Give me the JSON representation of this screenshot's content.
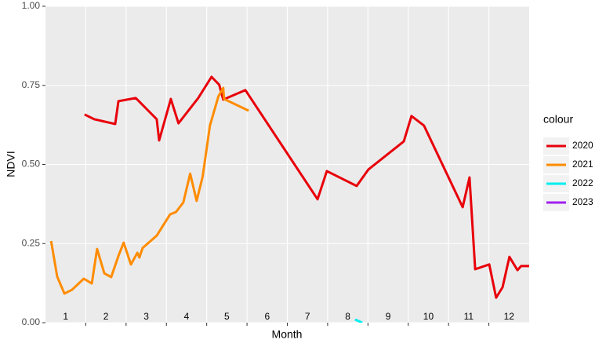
{
  "chart_data": {
    "type": "line",
    "x_label": "Month",
    "y_label": "NDVI",
    "legend_title": "colour",
    "xlim": [
      0.5,
      12.5
    ],
    "xticks": [
      1,
      2,
      3,
      4,
      5,
      6,
      7,
      8,
      9,
      10,
      11,
      12
    ],
    "x_boundaries": [
      1.5,
      2.5,
      3.5,
      4.5,
      5.5,
      6.5,
      7.5,
      8.5,
      9.5,
      10.5,
      11.5
    ],
    "ylim": [
      0,
      1
    ],
    "yticks": [
      {
        "value": 0,
        "label": "0.00"
      },
      {
        "value": 0.25,
        "label": "0.25"
      },
      {
        "value": 0.5,
        "label": "0.50"
      },
      {
        "value": 0.75,
        "label": "0.75"
      },
      {
        "value": 1,
        "label": "1.00"
      }
    ],
    "grid": true,
    "legend": "right",
    "series": [
      {
        "name": "2020",
        "color": "#e8000b",
        "x": [
          1.47,
          1.71,
          2.23,
          2.31,
          2.74,
          3.26,
          3.32,
          3.61,
          3.8,
          4.29,
          4.62,
          4.81,
          4.91,
          5.46,
          7.25,
          7.48,
          8.22,
          8.51,
          9.39,
          9.58,
          9.89,
          10.85,
          11.02,
          11.16,
          11.51,
          11.68,
          11.84,
          12.01,
          12.21,
          12.3,
          12.5
        ],
        "values": [
          0.658,
          0.643,
          0.628,
          0.7,
          0.71,
          0.643,
          0.576,
          0.707,
          0.63,
          0.71,
          0.777,
          0.752,
          0.705,
          0.735,
          0.39,
          0.479,
          0.432,
          0.484,
          0.573,
          0.653,
          0.623,
          0.365,
          0.459,
          0.169,
          0.184,
          0.079,
          0.112,
          0.208,
          0.166,
          0.179,
          0.179
        ]
      },
      {
        "name": "2021",
        "color": "#ff8c00",
        "x": [
          0.64,
          0.79,
          0.97,
          1.16,
          1.45,
          1.65,
          1.78,
          1.96,
          2.13,
          2.31,
          2.44,
          2.62,
          2.78,
          2.83,
          2.91,
          3.26,
          3.59,
          3.74,
          3.92,
          4.09,
          4.25,
          4.4,
          4.58,
          4.79,
          4.91,
          4.93,
          5.54
        ],
        "values": [
          0.258,
          0.146,
          0.092,
          0.104,
          0.139,
          0.124,
          0.233,
          0.156,
          0.144,
          0.211,
          0.253,
          0.184,
          0.221,
          0.206,
          0.236,
          0.275,
          0.342,
          0.35,
          0.38,
          0.471,
          0.385,
          0.462,
          0.623,
          0.715,
          0.742,
          0.707,
          0.67
        ]
      },
      {
        "name": "2022",
        "color": "#00eeee",
        "x": [
          8.18,
          8.36
        ],
        "values": [
          0.01,
          0
        ]
      },
      {
        "name": "2023",
        "color": "#a020f0",
        "x": [],
        "values": []
      }
    ]
  }
}
